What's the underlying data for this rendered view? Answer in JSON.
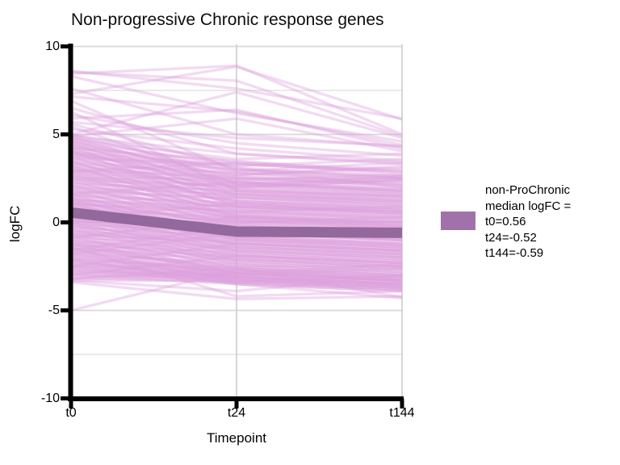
{
  "colors": {
    "axis": "#000000",
    "grid_major": "#d8d8d8",
    "grid_minor": "#e3e3e3",
    "background_line": "#DDA0DD",
    "median_line": "#93689C",
    "legend_swatch": "#A172A9",
    "text": "#000000",
    "panel_background": "#FFFFFF"
  },
  "chart_data": {
    "type": "line",
    "title": "Non-progressive Chronic response genes",
    "xlabel": "Timepoint",
    "ylabel": "logFC",
    "categories": [
      "t0",
      "t24",
      "t144"
    ],
    "ylim": [
      -10,
      10
    ],
    "grid": "on",
    "legend_position": "right",
    "y_major_ticks": [
      10,
      5,
      0,
      -5,
      -10
    ],
    "y_tick_labels": [
      "10",
      "5",
      "0",
      "-5",
      "-10"
    ],
    "y_minor_gridlines": [
      7.5,
      2.5,
      -2.5,
      -7.5
    ],
    "legend": {
      "lines": [
        "non-ProChronic",
        "median logFC =",
        "t0=0.56",
        "t24=-0.52",
        "t144=-0.59"
      ],
      "swatch_color": "#A172A9"
    },
    "median_series": {
      "name": "non-ProChronic median logFC",
      "values": [
        0.56,
        -0.52,
        -0.59
      ],
      "color": "#93689C",
      "width": 13
    },
    "background_lines": {
      "color": "#DDA0DD",
      "opacity": 0.38,
      "width": 3.4,
      "series": [
        [
          8.6,
          7.6,
          5.9
        ],
        [
          8.45,
          8.9,
          5.0
        ],
        [
          7.3,
          8.85,
          5.85
        ],
        [
          8.3,
          6.2,
          4.6
        ],
        [
          8.55,
          8.05,
          4.9
        ],
        [
          7.6,
          5.0,
          4.3
        ],
        [
          7.15,
          6.3,
          4.4
        ],
        [
          5.9,
          6.4,
          4.2
        ],
        [
          5.0,
          7.4,
          4.8
        ],
        [
          6.5,
          3.9,
          3.4
        ],
        [
          6.1,
          4.5,
          3.8
        ],
        [
          5.6,
          3.1,
          2.6
        ],
        [
          5.3,
          4.2,
          3.5
        ],
        [
          4.9,
          5.9,
          4.05
        ],
        [
          6.9,
          2.9,
          2.5
        ],
        [
          6.3,
          1.8,
          1.5
        ],
        [
          5.7,
          4.8,
          4.35
        ],
        [
          5.45,
          2.2,
          1.9
        ],
        [
          -5.0,
          -2.7,
          -3.3
        ],
        [
          -3.4,
          -4.35,
          -4.2
        ],
        [
          -2.1,
          -3.5,
          -4.3
        ],
        [
          -3.2,
          -2.6,
          -4.25
        ],
        [
          -1.4,
          -4.2,
          -3.9
        ],
        [
          -3.3,
          -3.9,
          -3.0
        ],
        [
          5.0,
          3.4,
          3.0
        ],
        [
          4.95,
          2.8,
          2.4
        ],
        [
          4.9,
          3.9,
          3.3
        ],
        [
          4.85,
          2.2,
          2.5
        ],
        [
          4.8,
          3.1,
          2.0
        ],
        [
          4.75,
          3.6,
          3.9
        ],
        [
          4.7,
          2.5,
          2.2
        ],
        [
          4.65,
          1.9,
          1.6
        ],
        [
          4.6,
          3.3,
          2.9
        ],
        [
          4.55,
          2.7,
          3.2
        ],
        [
          4.5,
          1.5,
          1.2
        ],
        [
          4.45,
          3.0,
          2.6
        ],
        [
          4.4,
          2.1,
          1.8
        ],
        [
          4.35,
          2.9,
          3.4
        ],
        [
          4.3,
          1.2,
          0.9
        ],
        [
          4.25,
          2.6,
          2.3
        ],
        [
          4.2,
          3.5,
          2.8
        ],
        [
          4.15,
          1.7,
          1.4
        ],
        [
          4.1,
          2.4,
          2.7
        ],
        [
          4.05,
          0.9,
          0.6
        ],
        [
          4.0,
          2.0,
          1.7
        ],
        [
          4.0,
          3.2,
          3.6
        ],
        [
          3.95,
          2.3,
          1.9
        ],
        [
          3.9,
          1.4,
          1.1
        ],
        [
          3.85,
          3.0,
          2.5
        ],
        [
          3.8,
          2.7,
          3.1
        ],
        [
          3.75,
          1.0,
          0.7
        ],
        [
          3.7,
          2.2,
          1.8
        ],
        [
          3.65,
          3.3,
          2.9
        ],
        [
          3.6,
          1.6,
          1.3
        ],
        [
          3.55,
          2.5,
          2.1
        ],
        [
          3.5,
          0.6,
          0.3
        ],
        [
          3.45,
          2.0,
          2.4
        ],
        [
          3.4,
          1.2,
          0.8
        ],
        [
          3.35,
          2.8,
          2.2
        ],
        [
          3.3,
          1.8,
          1.5
        ],
        [
          3.25,
          0.3,
          0.0
        ],
        [
          3.2,
          2.4,
          2.0
        ],
        [
          3.15,
          1.1,
          0.7
        ],
        [
          3.1,
          2.1,
          2.6
        ],
        [
          3.05,
          0.8,
          0.4
        ],
        [
          3.0,
          1.9,
          1.5
        ],
        [
          2.95,
          2.6,
          2.1
        ],
        [
          2.9,
          0.5,
          0.1
        ],
        [
          2.85,
          1.6,
          1.2
        ],
        [
          2.8,
          2.3,
          1.8
        ],
        [
          2.75,
          0.2,
          -0.2
        ],
        [
          2.7,
          1.4,
          1.0
        ],
        [
          2.65,
          2.0,
          2.4
        ],
        [
          2.6,
          0.9,
          0.5
        ],
        [
          2.55,
          1.7,
          1.3
        ],
        [
          2.5,
          0.4,
          0.0
        ],
        [
          2.45,
          1.2,
          0.8
        ],
        [
          2.4,
          2.1,
          1.6
        ],
        [
          2.35,
          0.1,
          -0.3
        ],
        [
          2.3,
          1.5,
          1.1
        ],
        [
          2.25,
          0.7,
          0.3
        ],
        [
          2.2,
          1.8,
          1.4
        ],
        [
          2.15,
          -0.2,
          -0.6
        ],
        [
          2.1,
          1.0,
          0.6
        ],
        [
          2.05,
          0.4,
          0.0
        ],
        [
          2.0,
          1.6,
          1.2
        ],
        [
          1.95,
          0.2,
          -0.2
        ],
        [
          1.9,
          1.3,
          0.9
        ],
        [
          1.85,
          -0.5,
          -0.9
        ],
        [
          1.8,
          0.8,
          0.4
        ],
        [
          1.75,
          1.4,
          1.0
        ],
        [
          1.7,
          0.0,
          -0.4
        ],
        [
          1.65,
          0.9,
          0.5
        ],
        [
          1.6,
          -0.8,
          -1.2
        ],
        [
          1.55,
          0.6,
          0.2
        ],
        [
          1.5,
          1.1,
          0.7
        ],
        [
          1.45,
          -0.3,
          -0.7
        ],
        [
          1.4,
          0.5,
          0.1
        ],
        [
          1.35,
          -1.0,
          -1.4
        ],
        [
          1.3,
          0.3,
          -0.1
        ],
        [
          1.25,
          0.9,
          0.6
        ],
        [
          1.2,
          -0.6,
          -1.0
        ],
        [
          1.15,
          0.1,
          -0.3
        ],
        [
          1.1,
          -1.3,
          -1.7
        ],
        [
          1.05,
          0.0,
          0.3
        ],
        [
          1.0,
          0.7,
          0.2
        ],
        [
          1.0,
          -0.9,
          -1.3
        ],
        [
          1.1,
          0.4,
          -0.2
        ],
        [
          1.2,
          -0.1,
          -0.5
        ],
        [
          1.3,
          0.6,
          0.9
        ],
        [
          0.95,
          -0.4,
          -0.8
        ],
        [
          0.9,
          0.2,
          -0.2
        ],
        [
          0.85,
          -1.1,
          -1.5
        ],
        [
          0.8,
          0.0,
          -0.4
        ],
        [
          0.75,
          -0.7,
          -1.1
        ],
        [
          0.7,
          0.3,
          0.0
        ],
        [
          0.65,
          -1.4,
          -1.8
        ],
        [
          0.6,
          -0.2,
          -0.6
        ],
        [
          0.55,
          -0.9,
          -1.3
        ],
        [
          0.5,
          0.1,
          -0.3
        ],
        [
          0.45,
          -1.6,
          -2.0
        ],
        [
          0.4,
          -0.5,
          -0.9
        ],
        [
          0.35,
          -1.2,
          -1.6
        ],
        [
          0.3,
          -0.1,
          -0.5
        ],
        [
          0.25,
          -1.8,
          -2.2
        ],
        [
          0.2,
          -0.8,
          -1.2
        ],
        [
          0.15,
          -1.5,
          -1.9
        ],
        [
          0.1,
          -0.3,
          -0.7
        ],
        [
          0.05,
          -2.0,
          -2.4
        ],
        [
          0.0,
          -1.0,
          -1.4
        ],
        [
          -0.05,
          -1.7,
          -2.1
        ],
        [
          -0.1,
          -0.6,
          -1.0
        ],
        [
          -0.15,
          -2.2,
          -2.6
        ],
        [
          -0.2,
          -1.2,
          -1.6
        ],
        [
          -0.25,
          -1.9,
          -2.3
        ],
        [
          -0.3,
          -0.8,
          -1.2
        ],
        [
          -0.35,
          -2.4,
          -2.8
        ],
        [
          -0.4,
          -1.4,
          -1.8
        ],
        [
          -0.45,
          -2.1,
          -2.5
        ],
        [
          -0.5,
          -1.0,
          -1.4
        ],
        [
          0.5,
          -0.6,
          -1.0
        ],
        [
          0.3,
          -1.3,
          -1.7
        ],
        [
          0.1,
          -0.9,
          -1.3
        ],
        [
          -0.1,
          -1.6,
          -2.0
        ],
        [
          -0.55,
          -1.6,
          -2.0
        ],
        [
          -0.6,
          -2.3,
          -2.7
        ],
        [
          -0.65,
          -1.2,
          -1.6
        ],
        [
          -0.7,
          -2.6,
          -3.0
        ],
        [
          -0.75,
          -1.8,
          -2.2
        ],
        [
          -0.8,
          -2.9,
          -3.3
        ],
        [
          -0.85,
          -1.4,
          -1.8
        ],
        [
          -0.9,
          -2.5,
          -2.9
        ],
        [
          -0.95,
          -1.9,
          -2.3
        ],
        [
          -1.0,
          -3.1,
          -3.5
        ],
        [
          -1.05,
          -2.1,
          -2.5
        ],
        [
          -1.1,
          -1.5,
          -1.9
        ],
        [
          -1.15,
          -2.7,
          -3.1
        ],
        [
          -1.2,
          -2.0,
          -2.4
        ],
        [
          -1.25,
          -3.2,
          -3.6
        ],
        [
          -1.3,
          -1.7,
          -2.1
        ],
        [
          -1.35,
          -2.8,
          -3.2
        ],
        [
          -1.4,
          -2.2,
          -2.6
        ],
        [
          -1.45,
          -3.4,
          -3.8
        ],
        [
          -1.5,
          -1.9,
          -2.3
        ],
        [
          -1.55,
          -2.6,
          -3.0
        ],
        [
          -1.6,
          -2.1,
          -2.5
        ],
        [
          -1.65,
          -3.0,
          -3.4
        ],
        [
          -1.7,
          -2.4,
          -2.8
        ],
        [
          -1.75,
          -3.3,
          -3.7
        ],
        [
          -1.8,
          -2.3,
          -2.7
        ],
        [
          -1.85,
          -2.9,
          -3.3
        ],
        [
          -1.9,
          -2.5,
          -2.9
        ],
        [
          -1.95,
          -3.1,
          -3.5
        ],
        [
          -2.0,
          -2.7,
          -3.1
        ],
        [
          -0.7,
          -1.1,
          -1.5
        ],
        [
          -1.2,
          -2.9,
          -2.4
        ],
        [
          -2.05,
          -2.8,
          -3.2
        ],
        [
          -2.1,
          -3.2,
          -3.6
        ],
        [
          -2.15,
          -2.6,
          -3.0
        ],
        [
          -2.2,
          -3.4,
          -3.8
        ],
        [
          -2.25,
          -2.9,
          -3.3
        ],
        [
          -2.3,
          -3.1,
          -3.5
        ],
        [
          -2.35,
          -2.7,
          -3.1
        ],
        [
          -2.4,
          -3.3,
          -3.7
        ],
        [
          -2.45,
          -3.0,
          -3.4
        ],
        [
          -2.5,
          -3.5,
          -3.9
        ],
        [
          -2.55,
          -2.8,
          -3.2
        ],
        [
          -2.6,
          -3.2,
          -3.6
        ],
        [
          -2.65,
          -3.0,
          -2.6
        ],
        [
          -2.7,
          -3.4,
          -3.8
        ],
        [
          -2.75,
          -3.1,
          -3.5
        ],
        [
          -2.8,
          -2.9,
          -3.3
        ],
        [
          -2.85,
          -3.3,
          -3.7
        ],
        [
          -2.9,
          -3.0,
          -3.4
        ],
        [
          -2.95,
          -3.5,
          -3.9
        ],
        [
          -3.0,
          -3.2,
          -3.6
        ],
        [
          -3.1,
          -2.9,
          -3.3
        ],
        [
          -3.15,
          -3.4,
          -3.0
        ],
        [
          -3.2,
          -3.1,
          -3.5
        ],
        [
          -3.3,
          -3.3,
          -3.7
        ],
        [
          -2.5,
          -1.2,
          -1.6
        ],
        [
          -1.8,
          -0.6,
          -1.0
        ],
        [
          -3.0,
          -1.9,
          -2.3
        ],
        [
          -0.9,
          0.3,
          -0.1
        ],
        [
          -1.6,
          -0.2,
          -0.8
        ],
        [
          0.2,
          1.1,
          0.5
        ],
        [
          1.6,
          2.3,
          1.7
        ],
        [
          2.9,
          3.4,
          2.7
        ]
      ]
    }
  }
}
